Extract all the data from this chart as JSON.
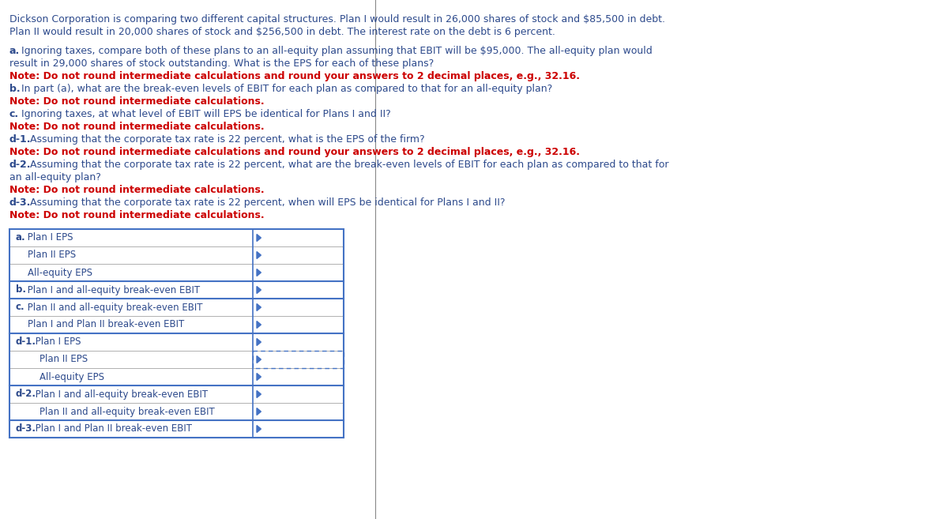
{
  "bg_color": "#ffffff",
  "text_color_dark": "#2d4a8c",
  "text_color_red": "#cc0000",
  "intro_lines": [
    "Dickson Corporation is comparing two different capital structures. Plan I would result in 26,000 shares of stock and $85,500 in debt.",
    "Plan II would result in 20,000 shares of stock and $256,500 in debt. The interest rate on the debt is 6 percent."
  ],
  "table_rows": [
    {
      "label": "a.",
      "rest": " Plan I EPS",
      "bold": true,
      "indent": 0,
      "border_top_thick": true,
      "dotted_right": false
    },
    {
      "label": "",
      "rest": "Plan II EPS",
      "bold": false,
      "indent": 1,
      "border_top_thick": false,
      "dotted_right": false
    },
    {
      "label": "",
      "rest": "All-equity EPS",
      "bold": false,
      "indent": 1,
      "border_top_thick": false,
      "dotted_right": false
    },
    {
      "label": "b.",
      "rest": " Plan I and all-equity break-even EBIT",
      "bold": true,
      "indent": 0,
      "border_top_thick": true,
      "dotted_right": false
    },
    {
      "label": "c.",
      "rest": " Plan II and all-equity break-even EBIT",
      "bold": true,
      "indent": 0,
      "border_top_thick": true,
      "dotted_right": false
    },
    {
      "label": "",
      "rest": "Plan I and Plan II break-even EBIT",
      "bold": false,
      "indent": 1,
      "border_top_thick": false,
      "dotted_right": false
    },
    {
      "label": "d-1.",
      "rest": " Plan I EPS",
      "bold": true,
      "indent": 0,
      "border_top_thick": true,
      "dotted_right": false
    },
    {
      "label": "",
      "rest": "Plan II EPS",
      "bold": false,
      "indent": 2,
      "border_top_thick": false,
      "dotted_right": true
    },
    {
      "label": "",
      "rest": "All-equity EPS",
      "bold": false,
      "indent": 2,
      "border_top_thick": false,
      "dotted_right": false
    },
    {
      "label": "d-2.",
      "rest": " Plan I and all-equity break-even EBIT",
      "bold": true,
      "indent": 0,
      "border_top_thick": true,
      "dotted_right": false
    },
    {
      "label": "",
      "rest": "Plan II and all-equity break-even EBIT",
      "bold": false,
      "indent": 2,
      "border_top_thick": false,
      "dotted_right": false
    },
    {
      "label": "d-3.",
      "rest": " Plan I and Plan II break-even EBIT",
      "bold": true,
      "indent": 0,
      "border_top_thick": true,
      "dotted_right": false
    }
  ],
  "table_border_color": "#4472c4",
  "table_inner_color": "#b0b0b0",
  "divider_color": "#888888"
}
